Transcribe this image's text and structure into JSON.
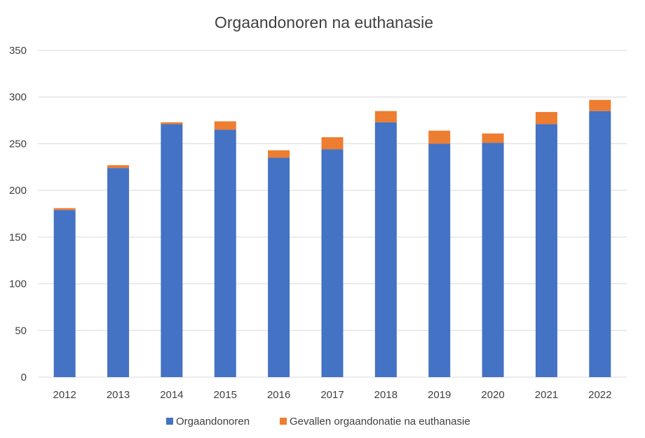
{
  "chart_data": {
    "type": "bar",
    "stacked": true,
    "title": "Orgaandonoren na euthanasie",
    "xlabel": "",
    "ylabel": "",
    "categories": [
      "2012",
      "2013",
      "2014",
      "2015",
      "2016",
      "2017",
      "2018",
      "2019",
      "2020",
      "2021",
      "2022"
    ],
    "series": [
      {
        "name": "Orgaandonoren",
        "color": "#4472C4",
        "values": [
          179,
          224,
          271,
          265,
          235,
          244,
          273,
          250,
          251,
          271,
          285
        ]
      },
      {
        "name": "Gevallen orgaandonatie na euthanasie",
        "color": "#ED7D31",
        "values": [
          2,
          3,
          2,
          9,
          8,
          13,
          12,
          14,
          10,
          13,
          12
        ]
      }
    ],
    "ylim": [
      0,
      350
    ],
    "yticks": [
      0,
      50,
      100,
      150,
      200,
      250,
      300,
      350
    ],
    "grid": true,
    "legend": "bottom"
  }
}
